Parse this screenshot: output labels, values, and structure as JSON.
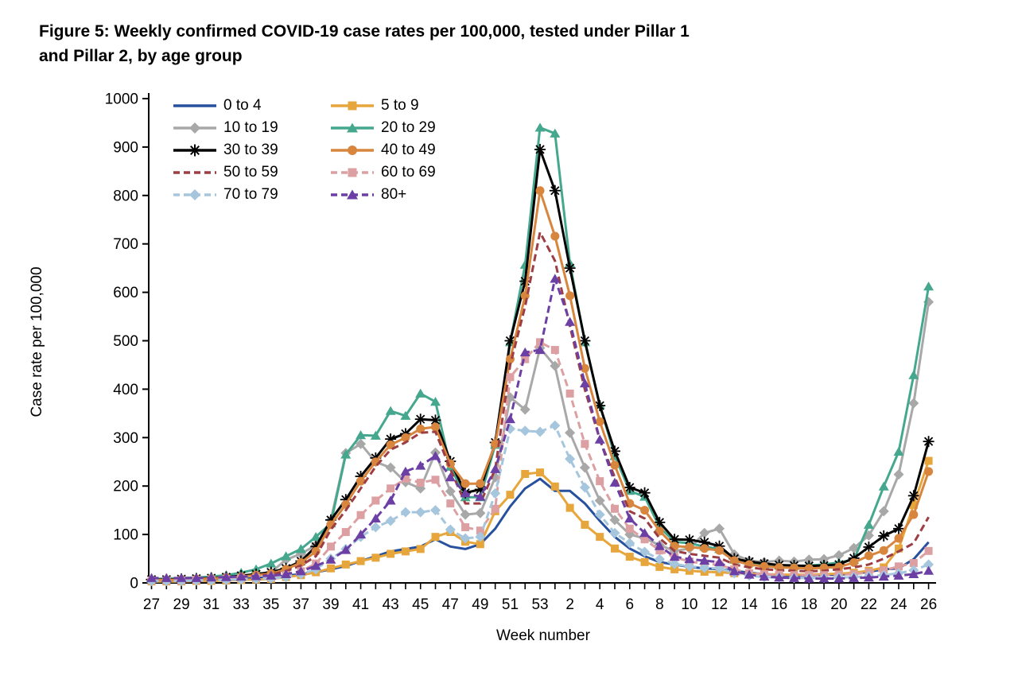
{
  "figure": {
    "title_line1": "Figure 5: Weekly confirmed COVID-19 case rates per 100,000, tested under Pillar 1",
    "title_line2": "and Pillar 2, by age group"
  },
  "chart_data": {
    "type": "line",
    "title": "Figure 5: Weekly confirmed COVID-19 case rates per 100,000, tested under Pillar 1 and Pillar 2, by age group",
    "xlabel": "Week number",
    "ylabel": "Case rate per 100,000",
    "ylim": [
      0,
      1000
    ],
    "y_ticks": [
      0,
      100,
      200,
      300,
      400,
      500,
      600,
      700,
      800,
      900,
      1000
    ],
    "grid": false,
    "legend_position": "top-left",
    "x_weeks": [
      27,
      28,
      29,
      30,
      31,
      32,
      33,
      34,
      35,
      36,
      37,
      38,
      39,
      40,
      41,
      42,
      43,
      44,
      45,
      46,
      47,
      48,
      49,
      50,
      51,
      52,
      53,
      1,
      2,
      3,
      4,
      5,
      6,
      7,
      8,
      9,
      10,
      11,
      12,
      13,
      14,
      15,
      16,
      17,
      18,
      19,
      20,
      21,
      22,
      23,
      24,
      25,
      26
    ],
    "x_tick_labels": [
      27,
      29,
      31,
      33,
      35,
      37,
      39,
      41,
      43,
      45,
      47,
      49,
      51,
      53,
      2,
      4,
      6,
      8,
      10,
      12,
      14,
      16,
      18,
      20,
      22,
      24,
      26
    ],
    "series": [
      {
        "name": "0 to 4",
        "color": "#27519E",
        "dash": false,
        "marker": "none",
        "values": [
          5,
          5,
          5,
          6,
          6,
          7,
          8,
          10,
          12,
          15,
          18,
          22,
          28,
          35,
          45,
          55,
          65,
          70,
          75,
          90,
          75,
          70,
          80,
          112,
          158,
          195,
          215,
          190,
          190,
          164,
          128,
          95,
          71,
          55,
          43,
          38,
          33,
          30,
          28,
          25,
          21,
          18,
          16,
          15,
          15,
          16,
          17,
          19,
          23,
          28,
          30,
          49,
          84
        ]
      },
      {
        "name": "5 to 9",
        "color": "#E6A63C",
        "dash": false,
        "marker": "square",
        "values": [
          3,
          3,
          3,
          4,
          4,
          5,
          6,
          7,
          8,
          12,
          16,
          22,
          30,
          38,
          45,
          52,
          60,
          65,
          70,
          95,
          105,
          85,
          80,
          148,
          182,
          225,
          228,
          199,
          155,
          120,
          95,
          71,
          54,
          43,
          33,
          28,
          25,
          23,
          22,
          20,
          19,
          18,
          17,
          17,
          17,
          18,
          19,
          21,
          25,
          32,
          71,
          161,
          252
        ]
      },
      {
        "name": "10 to 19",
        "color": "#A8A8A8",
        "dash": false,
        "marker": "diamond",
        "values": [
          7,
          7,
          8,
          8,
          9,
          11,
          14,
          18,
          22,
          48,
          60,
          78,
          130,
          268,
          287,
          250,
          238,
          208,
          195,
          269,
          189,
          141,
          144,
          218,
          383,
          358,
          485,
          448,
          310,
          238,
          170,
          130,
          100,
          92,
          78,
          66,
          71,
          103,
          112,
          59,
          46,
          43,
          46,
          44,
          48,
          49,
          57,
          72,
          98,
          148,
          224,
          371,
          580
        ]
      },
      {
        "name": "20 to 29",
        "color": "#45A88E",
        "dash": false,
        "marker": "triangle",
        "values": [
          8,
          9,
          10,
          11,
          13,
          16,
          21,
          28,
          40,
          55,
          70,
          95,
          123,
          265,
          305,
          304,
          355,
          345,
          391,
          374,
          240,
          177,
          177,
          285,
          497,
          657,
          940,
          928,
          660,
          497,
          368,
          262,
          190,
          178,
          115,
          85,
          82,
          75,
          70,
          48,
          42,
          38,
          36,
          35,
          36,
          38,
          42,
          48,
          120,
          199,
          271,
          429,
          612
        ]
      },
      {
        "name": "30 to 39",
        "color": "#000000",
        "dash": false,
        "marker": "star",
        "values": [
          7,
          7,
          8,
          9,
          10,
          12,
          15,
          18,
          22,
          30,
          45,
          75,
          130,
          172,
          220,
          258,
          297,
          308,
          338,
          336,
          251,
          186,
          193,
          290,
          500,
          623,
          895,
          810,
          650,
          500,
          366,
          272,
          197,
          186,
          125,
          90,
          89,
          84,
          76,
          50,
          44,
          40,
          37,
          36,
          35,
          36,
          38,
          51,
          74,
          97,
          112,
          180,
          292
        ]
      },
      {
        "name": "40 to 49",
        "color": "#D8853E",
        "dash": false,
        "marker": "circle",
        "values": [
          6,
          6,
          7,
          8,
          9,
          11,
          13,
          16,
          19,
          28,
          42,
          65,
          120,
          162,
          210,
          250,
          285,
          300,
          318,
          322,
          246,
          205,
          205,
          287,
          462,
          593,
          810,
          716,
          593,
          443,
          333,
          243,
          164,
          150,
          107,
          76,
          74,
          71,
          67,
          46,
          38,
          34,
          32,
          31,
          30,
          31,
          33,
          42,
          56,
          67,
          92,
          141,
          230
        ]
      },
      {
        "name": "50 to 59",
        "color": "#9C3E44",
        "dash": true,
        "marker": "none",
        "values": [
          6,
          6,
          6,
          7,
          8,
          10,
          12,
          14,
          17,
          24,
          36,
          55,
          110,
          150,
          195,
          240,
          275,
          290,
          310,
          312,
          235,
          164,
          164,
          235,
          450,
          571,
          724,
          665,
          530,
          399,
          296,
          218,
          148,
          133,
          92,
          66,
          60,
          56,
          52,
          38,
          32,
          28,
          26,
          25,
          24,
          25,
          28,
          32,
          38,
          50,
          65,
          82,
          136
        ]
      },
      {
        "name": "60 to 69",
        "color": "#DC9FA2",
        "dash": true,
        "marker": "square",
        "values": [
          5,
          5,
          5,
          6,
          7,
          8,
          9,
          10,
          11,
          16,
          24,
          40,
          75,
          105,
          140,
          170,
          195,
          215,
          207,
          213,
          164,
          115,
          108,
          153,
          425,
          462,
          497,
          481,
          391,
          287,
          210,
          153,
          112,
          90,
          67,
          53,
          44,
          40,
          37,
          28,
          20,
          18,
          17,
          16,
          16,
          16,
          17,
          18,
          22,
          26,
          34,
          41,
          66
        ]
      },
      {
        "name": "70 to 79",
        "color": "#A5C6DC",
        "dash": true,
        "marker": "diamond",
        "values": [
          4,
          4,
          4,
          5,
          5,
          6,
          7,
          8,
          9,
          12,
          18,
          28,
          50,
          70,
          95,
          115,
          128,
          146,
          146,
          150,
          110,
          92,
          95,
          185,
          318,
          314,
          312,
          325,
          256,
          197,
          141,
          103,
          82,
          64,
          49,
          39,
          34,
          31,
          30,
          20,
          15,
          12,
          11,
          10,
          10,
          10,
          11,
          12,
          14,
          16,
          20,
          26,
          38
        ]
      },
      {
        "name": "80+",
        "color": "#6C3FA4",
        "dash": true,
        "marker": "triangle",
        "values": [
          10,
          10,
          10,
          10,
          11,
          12,
          13,
          14,
          15,
          18,
          24,
          35,
          48,
          68,
          100,
          133,
          170,
          230,
          242,
          262,
          218,
          185,
          178,
          235,
          338,
          476,
          481,
          628,
          539,
          412,
          296,
          207,
          133,
          103,
          76,
          54,
          49,
          46,
          43,
          24,
          17,
          13,
          11,
          10,
          9,
          9,
          9,
          10,
          11,
          13,
          15,
          18,
          25
        ]
      }
    ]
  }
}
